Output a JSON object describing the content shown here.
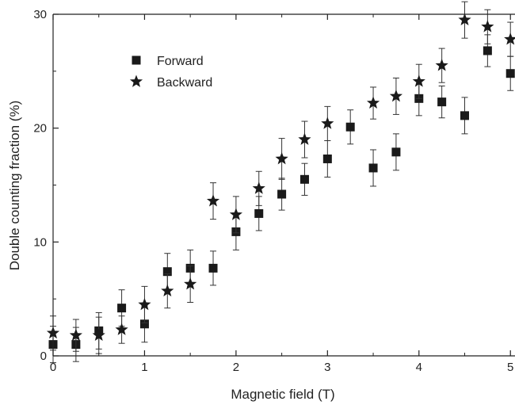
{
  "chart_data": {
    "type": "scatter",
    "title": "",
    "xlabel": "Magnetic field (T)",
    "ylabel": "Double counting fraction (%)",
    "xlim": [
      0,
      5.05
    ],
    "ylim": [
      0,
      30
    ],
    "xticks": [
      0,
      1,
      2,
      3,
      4,
      5
    ],
    "yticks": [
      0,
      10,
      20,
      30
    ],
    "xtick_labels": [
      "0",
      "1",
      "2",
      "3",
      "4",
      "5"
    ],
    "ytick_labels": [
      "0",
      "10",
      "20",
      "30"
    ],
    "legend_position": "top-left",
    "grid": false,
    "series": [
      {
        "name": "Forward",
        "marker": "square",
        "color": "#1a1a1a",
        "points": [
          {
            "x": 0.0,
            "y": 1.0,
            "err": 1.6
          },
          {
            "x": 0.25,
            "y": 1.0,
            "err": 1.5
          },
          {
            "x": 0.5,
            "y": 2.2,
            "err": 1.6
          },
          {
            "x": 0.75,
            "y": 4.2,
            "err": 1.6
          },
          {
            "x": 1.0,
            "y": 2.8,
            "err": 1.6
          },
          {
            "x": 1.25,
            "y": 7.4,
            "err": 1.6
          },
          {
            "x": 1.5,
            "y": 7.7,
            "err": 1.6
          },
          {
            "x": 1.75,
            "y": 7.7,
            "err": 1.5
          },
          {
            "x": 2.0,
            "y": 10.9,
            "err": 1.6
          },
          {
            "x": 2.25,
            "y": 12.5,
            "err": 1.5
          },
          {
            "x": 2.5,
            "y": 14.2,
            "err": 1.4
          },
          {
            "x": 2.75,
            "y": 15.5,
            "err": 1.4
          },
          {
            "x": 3.0,
            "y": 17.3,
            "err": 1.6
          },
          {
            "x": 3.25,
            "y": 20.1,
            "err": 1.5
          },
          {
            "x": 3.5,
            "y": 16.5,
            "err": 1.6
          },
          {
            "x": 3.75,
            "y": 17.9,
            "err": 1.6
          },
          {
            "x": 4.0,
            "y": 22.6,
            "err": 1.5
          },
          {
            "x": 4.25,
            "y": 22.3,
            "err": 1.4
          },
          {
            "x": 4.5,
            "y": 21.1,
            "err": 1.6
          },
          {
            "x": 4.75,
            "y": 26.8,
            "err": 1.4
          },
          {
            "x": 5.0,
            "y": 24.8,
            "err": 1.5
          }
        ]
      },
      {
        "name": "Backward",
        "marker": "star",
        "color": "#1a1a1a",
        "points": [
          {
            "x": 0.0,
            "y": 2.0,
            "err": 1.5
          },
          {
            "x": 0.25,
            "y": 1.8,
            "err": 1.4
          },
          {
            "x": 0.5,
            "y": 1.8,
            "err": 1.6
          },
          {
            "x": 0.75,
            "y": 2.3,
            "err": 1.2
          },
          {
            "x": 1.0,
            "y": 4.5,
            "err": 1.6
          },
          {
            "x": 1.25,
            "y": 5.7,
            "err": 1.5
          },
          {
            "x": 1.5,
            "y": 6.3,
            "err": 1.6
          },
          {
            "x": 1.75,
            "y": 13.6,
            "err": 1.6
          },
          {
            "x": 2.0,
            "y": 12.4,
            "err": 1.6
          },
          {
            "x": 2.25,
            "y": 14.7,
            "err": 1.5
          },
          {
            "x": 2.5,
            "y": 17.3,
            "err": 1.8
          },
          {
            "x": 2.75,
            "y": 19.0,
            "err": 1.6
          },
          {
            "x": 3.0,
            "y": 20.4,
            "err": 1.5
          },
          {
            "x": 3.5,
            "y": 22.2,
            "err": 1.4
          },
          {
            "x": 3.75,
            "y": 22.8,
            "err": 1.6
          },
          {
            "x": 4.0,
            "y": 24.1,
            "err": 1.5
          },
          {
            "x": 4.25,
            "y": 25.5,
            "err": 1.5
          },
          {
            "x": 4.5,
            "y": 29.5,
            "err": 1.6
          },
          {
            "x": 4.75,
            "y": 28.9,
            "err": 1.5
          },
          {
            "x": 5.0,
            "y": 27.8,
            "err": 1.5
          }
        ]
      }
    ]
  }
}
